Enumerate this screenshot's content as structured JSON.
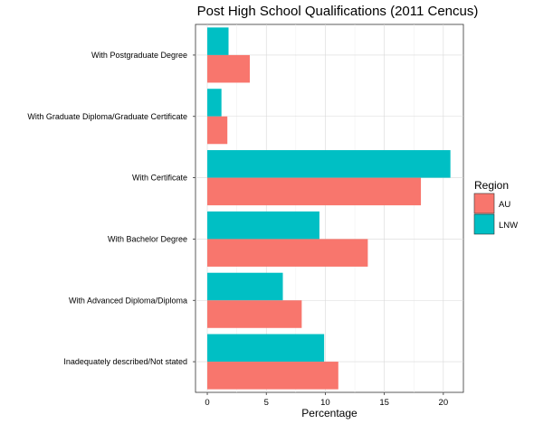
{
  "chart_data": {
    "type": "bar",
    "orientation": "horizontal",
    "title": "Post High School Qualifications (2011 Cencus)",
    "xlabel": "Percentage",
    "ylabel": "",
    "xlim": [
      -1,
      21.7
    ],
    "x_ticks": [
      0,
      5,
      10,
      15,
      20
    ],
    "x_tick_labels": [
      "0",
      "5",
      "10",
      "15",
      "20"
    ],
    "grid": true,
    "categories": [
      "With Postgraduate Degree",
      "With Graduate Diploma/Graduate Certificate",
      "With Certificate",
      "With Bachelor Degree",
      "With Advanced Diploma/Diploma",
      "Inadequately described/Not stated"
    ],
    "series": [
      {
        "name": "LNW",
        "color": "#00BFC4",
        "values": [
          1.8,
          1.2,
          20.6,
          9.5,
          6.4,
          9.9
        ]
      },
      {
        "name": "AU",
        "color": "#F8766D",
        "values": [
          3.6,
          1.7,
          18.1,
          13.6,
          8.0,
          11.1
        ]
      }
    ],
    "legend": {
      "title": "Region",
      "position": "right",
      "entries": [
        {
          "label": "AU",
          "color": "#F8766D"
        },
        {
          "label": "LNW",
          "color": "#00BFC4"
        }
      ]
    }
  }
}
